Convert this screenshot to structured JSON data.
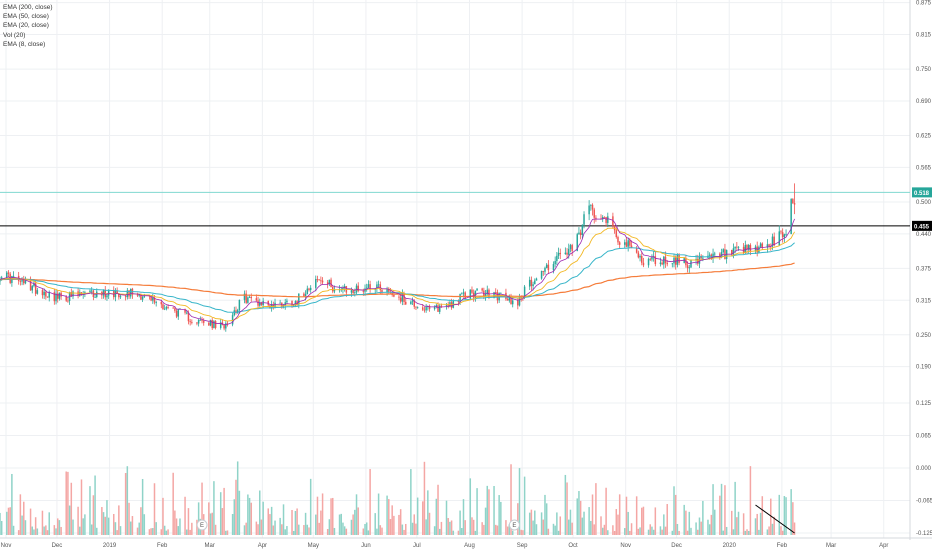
{
  "legend": {
    "items": [
      "EMA (200, close)",
      "EMA (50, close)",
      "EMA (20, close)",
      "Vol (20)",
      "EMA (8, close)"
    ]
  },
  "colors": {
    "up": "#26a69a",
    "down": "#ef5350",
    "ema200": "#f57c3a",
    "ema50": "#37b5c9",
    "ema20": "#f2b824",
    "ema8": "#9c27b0",
    "vol_up": "#8fd3c8",
    "vol_down": "#f4a6a4",
    "resistance_line": "#80d8d0",
    "support_line": "#000000",
    "grid": "#eef0f3"
  },
  "chart_data": {
    "type": "candlestick",
    "y_axis": {
      "ticks": [
        "0.875",
        "0.815",
        "0.750",
        "0.690",
        "0.625",
        "0.565",
        "0.500",
        "0.440",
        "0.375",
        "0.315",
        "0.250",
        "0.190"
      ],
      "range": [
        0.18,
        0.88
      ]
    },
    "volume_axis": {
      "ticks": [
        "0.125",
        "0.065",
        "0.000",
        "-0.065",
        "-0.125"
      ]
    },
    "x_axis": {
      "ticks": [
        "Nov",
        "Dec",
        "2019",
        "Feb",
        "Mar",
        "Apr",
        "May",
        "Jun",
        "Jul",
        "Aug",
        "Sep",
        "Oct",
        "Nov",
        "Dec",
        "2020",
        "Feb",
        "Mar",
        "Apr"
      ],
      "start": "2018-11-01",
      "end": "2020-04-20"
    },
    "price_markers": [
      {
        "label": "0.518",
        "value": 0.518,
        "color": "#26a69a"
      },
      {
        "label": "0.455",
        "value": 0.455,
        "color": "#000000"
      }
    ],
    "earnings_markers": [
      {
        "label": "E",
        "date": "2019-02-28"
      },
      {
        "label": "E",
        "date": "2019-08-31"
      }
    ],
    "key_prices": [
      {
        "date": "2018-11-01",
        "price": 0.365
      },
      {
        "date": "2018-12-05",
        "price": 0.32
      },
      {
        "date": "2019-01-05",
        "price": 0.33
      },
      {
        "date": "2019-01-20",
        "price": 0.33
      },
      {
        "date": "2019-02-05",
        "price": 0.305
      },
      {
        "date": "2019-02-25",
        "price": 0.275
      },
      {
        "date": "2019-03-12",
        "price": 0.265
      },
      {
        "date": "2019-03-25",
        "price": 0.32
      },
      {
        "date": "2019-04-10",
        "price": 0.305
      },
      {
        "date": "2019-04-25",
        "price": 0.315
      },
      {
        "date": "2019-05-05",
        "price": 0.355
      },
      {
        "date": "2019-05-25",
        "price": 0.33
      },
      {
        "date": "2019-06-10",
        "price": 0.345
      },
      {
        "date": "2019-06-25",
        "price": 0.32
      },
      {
        "date": "2019-07-12",
        "price": 0.295
      },
      {
        "date": "2019-07-25",
        "price": 0.31
      },
      {
        "date": "2019-08-05",
        "price": 0.33
      },
      {
        "date": "2019-08-20",
        "price": 0.325
      },
      {
        "date": "2019-09-01",
        "price": 0.31
      },
      {
        "date": "2019-09-10",
        "price": 0.35
      },
      {
        "date": "2019-09-25",
        "price": 0.395
      },
      {
        "date": "2019-10-05",
        "price": 0.41
      },
      {
        "date": "2019-10-14",
        "price": 0.49
      },
      {
        "date": "2019-10-25",
        "price": 0.47
      },
      {
        "date": "2019-11-01",
        "price": 0.43
      },
      {
        "date": "2019-11-15",
        "price": 0.39
      },
      {
        "date": "2019-12-05",
        "price": 0.39
      },
      {
        "date": "2019-12-15",
        "price": 0.385
      },
      {
        "date": "2020-01-01",
        "price": 0.4
      },
      {
        "date": "2020-01-20",
        "price": 0.41
      },
      {
        "date": "2020-02-01",
        "price": 0.425
      },
      {
        "date": "2020-02-07",
        "price": 0.445
      },
      {
        "date": "2020-02-10",
        "price": 0.5
      },
      {
        "date": "2020-02-12",
        "price": 0.49
      }
    ]
  }
}
